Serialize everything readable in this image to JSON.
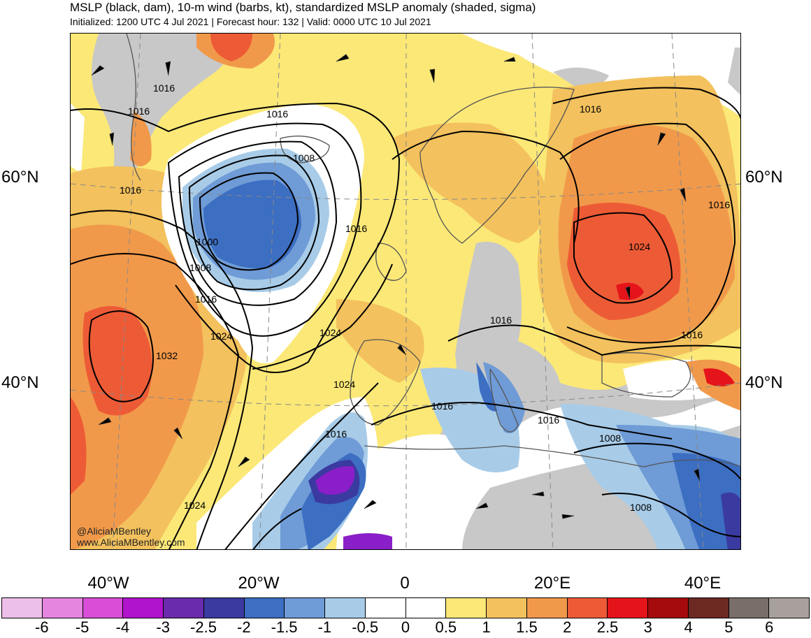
{
  "header": {
    "title": "MSLP (black, dam), 10-m wind (barbs, kt), standardized MSLP anomaly (shaded, sigma)",
    "subtitle": "Initialized: 1200 UTC 4 Jul 2021 | Forecast hour: 132 | Valid: 0000 UTC 10 Jul 2021"
  },
  "lat_labels": [
    "60°N",
    "40°N"
  ],
  "lon_labels": [
    "40°W",
    "20°W",
    "0",
    "20°E",
    "40°E"
  ],
  "isobar_labels": [
    "1016",
    "1016",
    "1016",
    "1016",
    "1008",
    "1000",
    "1008",
    "1016",
    "1016",
    "1024",
    "1032",
    "1024",
    "1024",
    "1016",
    "1024",
    "1016",
    "1016",
    "1016",
    "1016",
    "1008",
    "1008",
    "1016",
    "1024",
    "1016"
  ],
  "credit": {
    "twitter": "@AliciaMBentley",
    "website": "www.AliciaMBentley.com"
  },
  "colorbar": {
    "colors": [
      "#ecbfe8",
      "#e585e0",
      "#d84ed6",
      "#b014cc",
      "#6a2cad",
      "#3a3aa0",
      "#3c6ec2",
      "#6f9bd6",
      "#a8cce8",
      "#ffffff",
      "#ffffff",
      "#fbe877",
      "#f3c15d",
      "#f1994a",
      "#ed5b36",
      "#e5141a",
      "#a50b0d",
      "#6d2a23",
      "#7a6e6a",
      "#a8a09c"
    ],
    "tick_labels": [
      "-6",
      "-5",
      "-4",
      "-3",
      "-2.5",
      "-2",
      "-1.5",
      "-1",
      "-0.5",
      "0",
      "0.5",
      "1",
      "1.5",
      "2",
      "2.5",
      "3",
      "4",
      "5",
      "6"
    ]
  },
  "map_colors": {
    "ocean_pos_weak": "#fbe877",
    "pos_1": "#f3c15d",
    "pos_15": "#f1994a",
    "pos_2": "#ed5b36",
    "pos_25": "#e5141a",
    "neg_05": "#a8cce8",
    "neg_1": "#6f9bd6",
    "neg_15": "#3c6ec2",
    "neg_2": "#3a3aa0",
    "neg_3": "#8a1ec8",
    "gray": "#c8c8c8",
    "white": "#ffffff"
  }
}
